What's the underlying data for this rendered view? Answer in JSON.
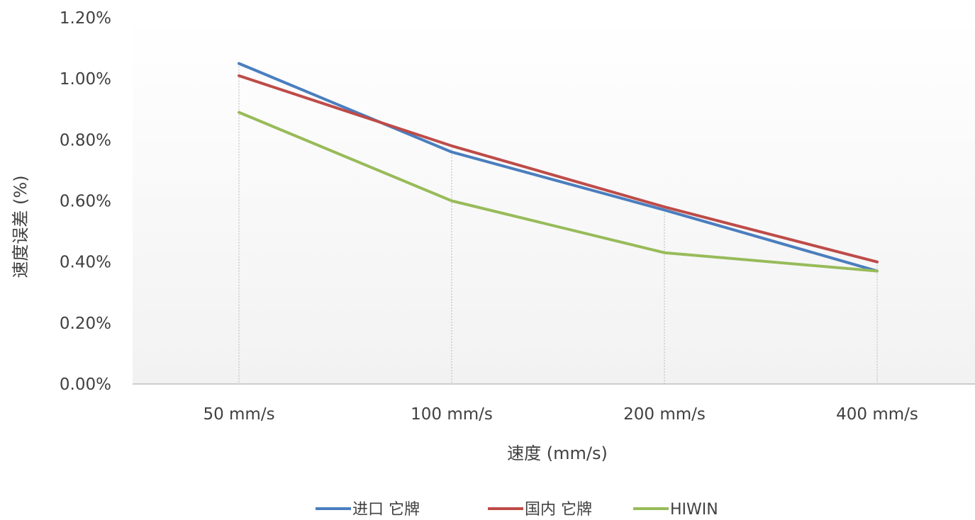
{
  "chart_data": {
    "type": "line",
    "title": "",
    "xlabel": "速度 (mm/s)",
    "ylabel": "速度误差 (%)",
    "categories": [
      "50 mm/s",
      "100 mm/s",
      "200 mm/s",
      "400 mm/s"
    ],
    "y_ticks": [
      "0.00%",
      "0.20%",
      "0.40%",
      "0.60%",
      "0.80%",
      "1.00%",
      "1.20%"
    ],
    "ylim": [
      0,
      1.2
    ],
    "y_unit": "%",
    "grid": "vertical dotted lines at categories",
    "legend_position": "bottom",
    "series": [
      {
        "name": "进口 它牌",
        "color": "#4a7ebf",
        "values": [
          1.05,
          0.76,
          0.57,
          0.37
        ]
      },
      {
        "name": "国内 它牌",
        "color": "#be4b48",
        "values": [
          1.01,
          0.78,
          0.58,
          0.4
        ]
      },
      {
        "name": "HIWIN",
        "color": "#98bb59",
        "values": [
          0.89,
          0.6,
          0.43,
          0.37
        ]
      }
    ]
  }
}
